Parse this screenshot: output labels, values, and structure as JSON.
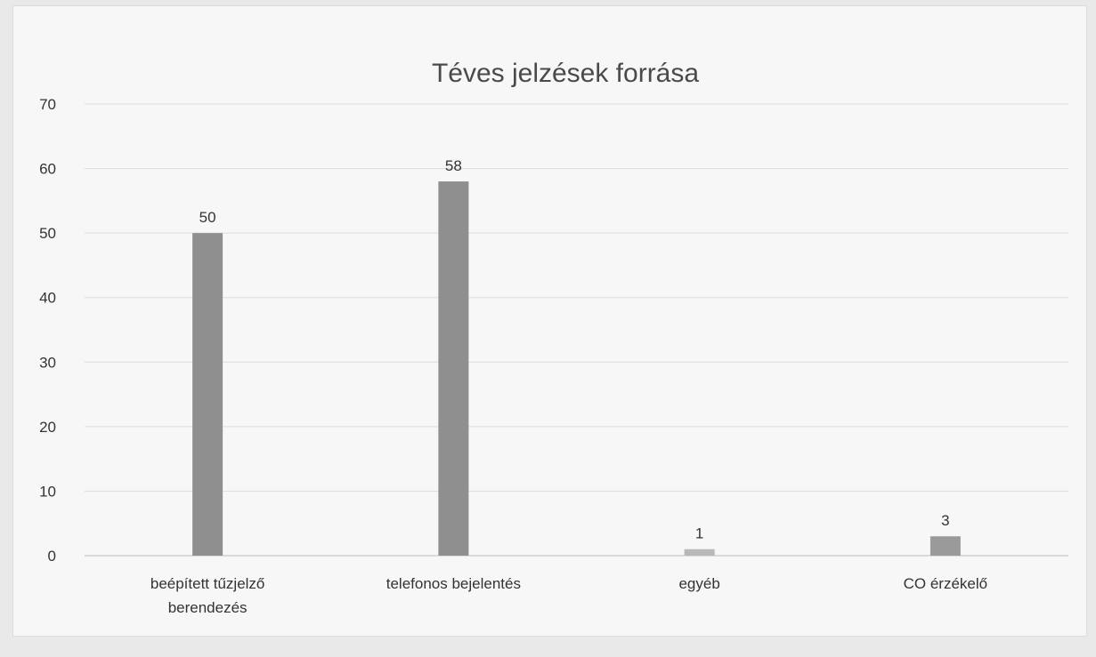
{
  "chart_data": {
    "type": "bar",
    "title": "Téves jelzések forrása",
    "categories": [
      [
        "beépített tűzjelző",
        "berendezés"
      ],
      [
        "telefonos bejelentés"
      ],
      [
        "egyéb"
      ],
      [
        "CO érzékelő"
      ]
    ],
    "values": [
      50,
      58,
      1,
      3
    ],
    "data_labels": [
      "50",
      "58",
      "1",
      "3"
    ],
    "ylim": [
      0,
      70
    ],
    "yticks": [
      0,
      10,
      20,
      30,
      40,
      50,
      60,
      70
    ],
    "grid": true,
    "legend": "none",
    "colors": {
      "bars": [
        "#8f8f8f",
        "#8f8f8f",
        "#b8b8b8",
        "#9a9a9a"
      ]
    }
  }
}
